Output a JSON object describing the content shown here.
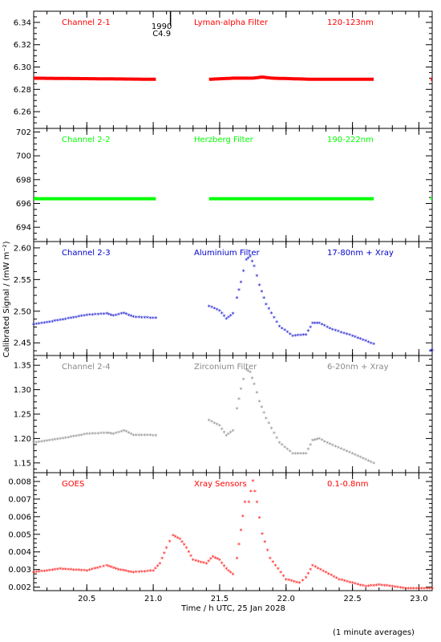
{
  "figure": {
    "xlabel": "Time / h UTC, 25 Jan 2028",
    "ylabel": "Calibrated Signal / (mW m⁻²)",
    "note": "(1 minute averages)",
    "x_range": [
      20.1,
      23.1
    ],
    "x_ticks": [
      20.5,
      21.0,
      21.5,
      22.0,
      22.5,
      23.0
    ],
    "x_tick_labels": [
      "20.5",
      "21.0",
      "21.5",
      "22.0",
      "22.5",
      "23.0"
    ],
    "event_marker": {
      "x": 21.13,
      "label_1": "1990",
      "label_2": "C4.9"
    }
  },
  "chart_data": [
    {
      "type": "scatter",
      "channel": "Channel 2-1",
      "filter": "Lyman-alpha Filter",
      "band": "120-123nm",
      "color": "#ff0000",
      "ylim": [
        6.245,
        6.35
      ],
      "y_ticks": [
        6.26,
        6.28,
        6.3,
        6.32,
        6.34
      ],
      "y_tick_labels": [
        "6.26",
        "6.28",
        "6.30",
        "6.32",
        "6.34"
      ],
      "series": [
        {
          "x": [
            20.1,
            21.02
          ],
          "values": [
            6.29,
            6.289
          ]
        },
        {
          "x": [
            21.42,
            21.6,
            21.75,
            21.82,
            21.9,
            22.2,
            22.66
          ],
          "values": [
            6.289,
            6.29,
            6.29,
            6.291,
            6.29,
            6.289,
            6.289
          ]
        },
        {
          "x": [
            23.09,
            23.1
          ],
          "values": [
            6.289,
            6.289
          ]
        }
      ]
    },
    {
      "type": "scatter",
      "channel": "Channel 2-2",
      "filter": "Herzberg Filter",
      "band": "190-222nm",
      "color": "#00ff00",
      "ylim": [
        692.8,
        702.3
      ],
      "y_ticks": [
        694,
        696,
        698,
        700,
        702
      ],
      "y_tick_labels": [
        "694",
        "696",
        "698",
        "700",
        "702"
      ],
      "series": [
        {
          "x": [
            20.1,
            21.02
          ],
          "values": [
            696.4,
            696.4
          ]
        },
        {
          "x": [
            21.42,
            22.66
          ],
          "values": [
            696.4,
            696.4
          ]
        },
        {
          "x": [
            23.09,
            23.1
          ],
          "values": [
            696.4,
            696.4
          ]
        }
      ]
    },
    {
      "type": "scatter",
      "channel": "Channel 2-3",
      "filter": "Aluminium Filter",
      "band": "17-80nm + Xray",
      "color": "#0000cc",
      "ylim": [
        2.43,
        2.61
      ],
      "y_ticks": [
        2.45,
        2.5,
        2.55,
        2.6
      ],
      "y_tick_labels": [
        "2.45",
        "2.50",
        "2.55",
        "2.60"
      ],
      "series": [
        {
          "x": [
            20.1,
            20.3,
            20.5,
            20.65,
            20.7,
            20.78,
            20.85,
            21.02
          ],
          "values": [
            2.478,
            2.485,
            2.493,
            2.495,
            2.492,
            2.496,
            2.49,
            2.488
          ]
        },
        {
          "x": [
            21.42,
            21.5,
            21.55,
            21.6,
            21.63,
            21.66,
            21.7,
            21.73,
            21.76,
            21.8,
            21.85,
            21.95,
            22.05,
            22.15,
            22.2,
            22.25,
            22.35,
            22.5,
            22.66
          ],
          "values": [
            2.507,
            2.5,
            2.487,
            2.495,
            2.52,
            2.545,
            2.58,
            2.585,
            2.57,
            2.54,
            2.51,
            2.475,
            2.46,
            2.462,
            2.48,
            2.48,
            2.47,
            2.46,
            2.447
          ]
        },
        {
          "x": [
            23.09,
            23.1
          ],
          "values": [
            2.437,
            2.437
          ]
        }
      ]
    },
    {
      "type": "scatter",
      "channel": "Channel 2-4",
      "filter": "Zirconium Filter",
      "band": "6-20nm + Xray",
      "color": "#888888",
      "ylim": [
        1.13,
        1.37
      ],
      "y_ticks": [
        1.15,
        1.2,
        1.25,
        1.3,
        1.35
      ],
      "y_tick_labels": [
        "1.15",
        "1.20",
        "1.25",
        "1.30",
        "1.35"
      ],
      "series": [
        {
          "x": [
            20.1,
            20.3,
            20.5,
            20.65,
            20.7,
            20.78,
            20.85,
            21.02
          ],
          "values": [
            1.19,
            1.198,
            1.208,
            1.21,
            1.208,
            1.215,
            1.206,
            1.205
          ]
        },
        {
          "x": [
            21.42,
            21.5,
            21.55,
            21.6,
            21.63,
            21.66,
            21.7,
            21.73,
            21.76,
            21.8,
            21.85,
            21.95,
            22.05,
            22.15,
            22.2,
            22.25,
            22.35,
            22.5,
            22.66
          ],
          "values": [
            1.236,
            1.225,
            1.205,
            1.215,
            1.26,
            1.3,
            1.34,
            1.335,
            1.31,
            1.275,
            1.24,
            1.19,
            1.168,
            1.168,
            1.195,
            1.198,
            1.185,
            1.168,
            1.148
          ]
        }
      ]
    },
    {
      "type": "scatter",
      "channel": "GOES",
      "filter": "Xray Sensors",
      "band": "0.1-0.8nm",
      "color": "#ff0000",
      "ylim": [
        0.0018,
        0.0085
      ],
      "y_ticks": [
        0.002,
        0.003,
        0.004,
        0.005,
        0.006,
        0.007,
        0.008
      ],
      "y_tick_labels": [
        "0.002",
        "0.003",
        "0.004",
        "0.005",
        "0.006",
        "0.007",
        "0.008"
      ],
      "series": [
        {
          "x": [
            20.1,
            20.3,
            20.5,
            20.6,
            20.65,
            20.72,
            20.85,
            21.0,
            21.05,
            21.1,
            21.15,
            21.2,
            21.25,
            21.3,
            21.4,
            21.45,
            21.5,
            21.55,
            21.6,
            21.63,
            21.66,
            21.69,
            21.72,
            21.75,
            21.78,
            21.82,
            21.88,
            22.0,
            22.1,
            22.15,
            22.2,
            22.3,
            22.4,
            22.5,
            22.6,
            22.7,
            22.8,
            22.9,
            23.0,
            23.1
          ],
          "values": [
            0.0028,
            0.003,
            0.0029,
            0.0031,
            0.0032,
            0.003,
            0.0028,
            0.0029,
            0.0033,
            0.0042,
            0.0049,
            0.0047,
            0.0042,
            0.0035,
            0.0033,
            0.0037,
            0.0035,
            0.003,
            0.0027,
            0.0036,
            0.0052,
            0.0068,
            0.0068,
            0.008,
            0.0068,
            0.005,
            0.0036,
            0.0024,
            0.0022,
            0.0025,
            0.0032,
            0.0028,
            0.0024,
            0.0022,
            0.002,
            0.0021,
            0.002,
            0.0019,
            0.0019,
            0.0019
          ]
        }
      ]
    }
  ]
}
